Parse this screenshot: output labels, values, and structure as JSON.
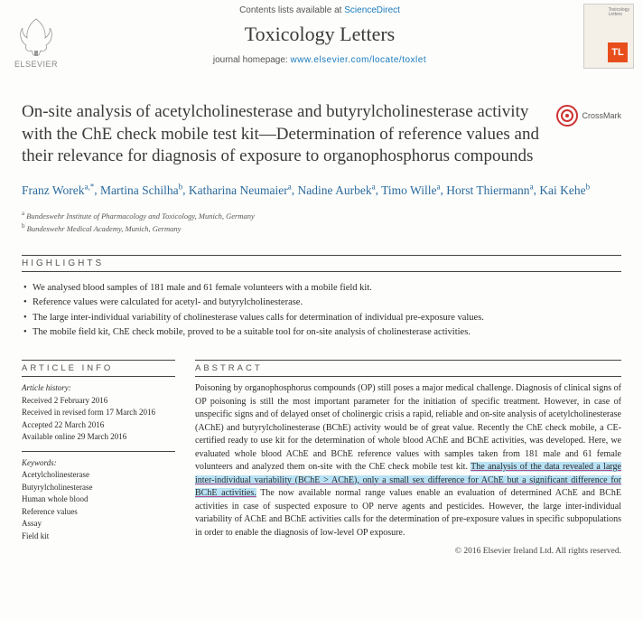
{
  "header": {
    "contents_prefix": "Contents lists available at ",
    "sciencedirect": "ScienceDirect",
    "journal_title": "Toxicology Letters",
    "homepage_prefix": "journal homepage: ",
    "homepage_url": "www.elsevier.com/locate/toxlet",
    "elsevier_label": "ELSEVIER",
    "cover_small": "Toxicology\nLetters",
    "cover_badge": "TL"
  },
  "article": {
    "title": "On-site analysis of acetylcholinesterase and butyrylcholinesterase activity with the ChE check mobile test kit—Determination of reference values and their relevance for diagnosis of exposure to organophosphorus compounds",
    "crossmark": "CrossMark"
  },
  "authors": [
    {
      "name": "Franz Worek",
      "sup": "a,*"
    },
    {
      "name": "Martina Schilha",
      "sup": "b"
    },
    {
      "name": "Katharina Neumaier",
      "sup": "a"
    },
    {
      "name": "Nadine Aurbek",
      "sup": "a"
    },
    {
      "name": "Timo Wille",
      "sup": "a"
    },
    {
      "name": "Horst Thiermann",
      "sup": "a"
    },
    {
      "name": "Kai Kehe",
      "sup": "b"
    }
  ],
  "affiliations": [
    {
      "sup": "a",
      "text": "Bundeswehr Institute of Pharmacology and Toxicology, Munich, Germany"
    },
    {
      "sup": "b",
      "text": "Bundeswehr Medical Academy, Munich, Germany"
    }
  ],
  "highlights_label": "HIGHLIGHTS",
  "highlights": [
    "We analysed blood samples of 181 male and 61 female volunteers with a mobile field kit.",
    "Reference values were calculated for acetyl- and butyrylcholinesterase.",
    "The large inter-individual variability of cholinesterase values calls for determination of individual pre-exposure values.",
    "The mobile field kit, ChE check mobile, proved to be a suitable tool for on-site analysis of cholinesterase activities."
  ],
  "article_info_label": "ARTICLE INFO",
  "abstract_label": "ABSTRACT",
  "history": {
    "heading": "Article history:",
    "received": "Received 2 February 2016",
    "revised": "Received in revised form 17 March 2016",
    "accepted": "Accepted 22 March 2016",
    "online": "Available online 29 March 2016"
  },
  "keywords": {
    "heading": "Keywords:",
    "items": [
      "Acetylcholinesterase",
      "Butyrylcholinesterase",
      "Human whole blood",
      "Reference values",
      "Assay",
      "Field kit"
    ]
  },
  "abstract": {
    "pre": "Poisoning by organophosphorus compounds (OP) still poses a major medical challenge. Diagnosis of clinical signs of OP poisoning is still the most important parameter for the initiation of specific treatment. However, in case of unspecific signs and of delayed onset of cholinergic crisis a rapid, reliable and on-site analysis of acetylcholinesterase (AChE) and butyrylcholinesterase (BChE) activity would be of great value. Recently the ChE check mobile, a CE-certified ready to use kit for the determination of whole blood AChE and BChE activities, was developed. Here, we evaluated whole blood AChE and BChE reference values with samples taken from 181 male and 61 female volunteers and analyzed them on-site with the ChE check mobile test kit. ",
    "hl": "The analysis of the data revealed a large inter-individual variability (BChE > AChE), only a small sex difference for AChE but a significant difference for BChE activities.",
    "post": " The now available normal range values enable an evaluation of determined AChE and BChE activities in case of suspected exposure to OP nerve agents and pesticides. However, the large inter-individual variability of AChE and BChE activities calls for the determination of pre-exposure values in specific subpopulations in order to enable the diagnosis of low-level OP exposure."
  },
  "copyright": "© 2016 Elsevier Ireland Ltd. All rights reserved.",
  "colors": {
    "link": "#1a7abf",
    "author": "#2a6a9e",
    "tl_badge_bg": "#e84e1b",
    "highlight_bg": "#b9e2f5",
    "underline": "#b84a8a"
  }
}
